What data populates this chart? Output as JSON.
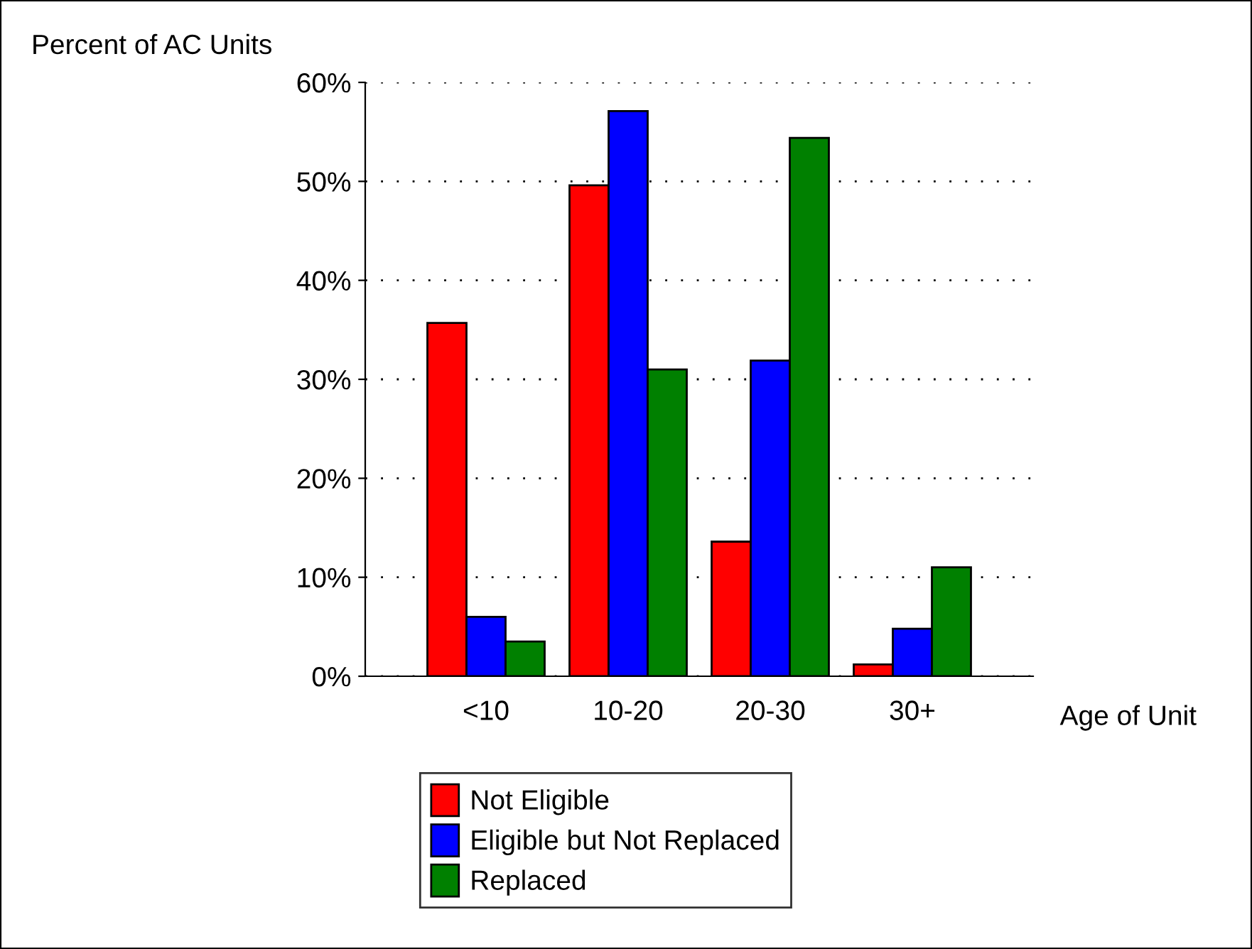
{
  "chart_data": {
    "type": "bar",
    "ylabel": "Percent of AC Units",
    "xlabel": "Age of Unit",
    "categories": [
      "<10",
      "10-20",
      "20-30",
      "30+"
    ],
    "series": [
      {
        "name": "Not Eligible",
        "color": "#ff0000",
        "values": [
          35.7,
          49.6,
          13.6,
          1.2
        ]
      },
      {
        "name": "Eligible but Not Replaced",
        "color": "#0000ff",
        "values": [
          6.0,
          57.1,
          31.9,
          4.8
        ]
      },
      {
        "name": "Replaced",
        "color": "#008000",
        "values": [
          3.5,
          31.0,
          54.4,
          11.0
        ]
      }
    ],
    "ylim": [
      0,
      60
    ],
    "yticks": [
      {
        "value": 0,
        "label": "0%"
      },
      {
        "value": 10,
        "label": "10%"
      },
      {
        "value": 20,
        "label": "20%"
      },
      {
        "value": 30,
        "label": "30%"
      },
      {
        "value": 40,
        "label": "40%"
      },
      {
        "value": 50,
        "label": "50%"
      },
      {
        "value": 60,
        "label": "60%"
      }
    ],
    "grid": "y",
    "legend": "bottom"
  }
}
